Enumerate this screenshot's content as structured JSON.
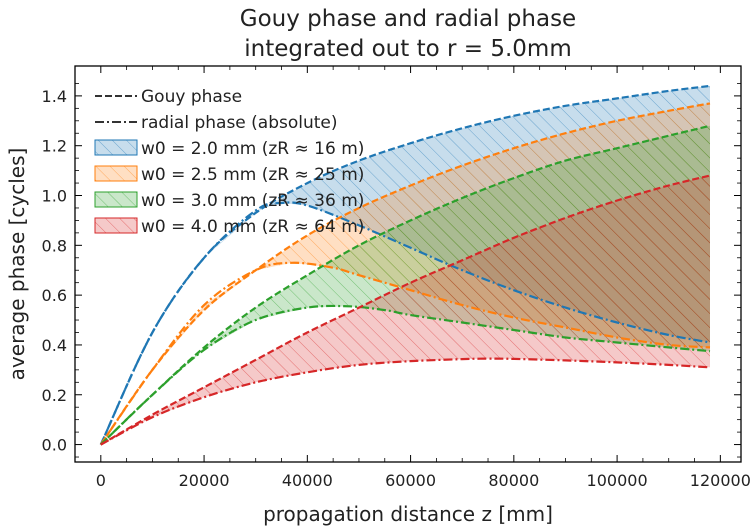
{
  "chart_data": {
    "type": "line",
    "title_lines": [
      "Gouy phase and radial phase",
      "integrated out to r = 5.0mm"
    ],
    "xlabel": "propagation distance z [mm]",
    "ylabel": "average phase [cycles]",
    "xlim": [
      -5000,
      124000
    ],
    "ylim": [
      -0.07,
      1.52
    ],
    "xticks": [
      0,
      20000,
      40000,
      60000,
      80000,
      100000,
      120000
    ],
    "yticks": [
      0.0,
      0.2,
      0.4,
      0.6,
      0.8,
      1.0,
      1.2,
      1.4
    ],
    "x_max": 118000,
    "legend_position": "upper-left",
    "style_legend": [
      {
        "label": "Gouy phase",
        "dash": "dashed"
      },
      {
        "label": "radial phase (absolute)",
        "dash": "dashdot"
      }
    ],
    "series": [
      {
        "name": "w0 = 2.0 mm (zR ≈ 16 m)",
        "color": "#1f77b4",
        "gouy": [
          [
            0,
            0
          ],
          [
            10000,
            0.45
          ],
          [
            20000,
            0.75
          ],
          [
            30000,
            0.93
          ],
          [
            40000,
            1.05
          ],
          [
            50000,
            1.14
          ],
          [
            60000,
            1.21
          ],
          [
            70000,
            1.27
          ],
          [
            80000,
            1.32
          ],
          [
            90000,
            1.36
          ],
          [
            100000,
            1.39
          ],
          [
            110000,
            1.42
          ],
          [
            118000,
            1.44
          ]
        ],
        "radial": [
          [
            0,
            0
          ],
          [
            10000,
            0.45
          ],
          [
            20000,
            0.75
          ],
          [
            30000,
            0.94
          ],
          [
            35000,
            0.97
          ],
          [
            40000,
            0.96
          ],
          [
            50000,
            0.88
          ],
          [
            60000,
            0.79
          ],
          [
            70000,
            0.7
          ],
          [
            80000,
            0.62
          ],
          [
            90000,
            0.55
          ],
          [
            100000,
            0.49
          ],
          [
            110000,
            0.44
          ],
          [
            118000,
            0.41
          ]
        ]
      },
      {
        "name": "w0 = 2.5 mm (zR ≈ 25 m)",
        "color": "#ff7f0e",
        "gouy": [
          [
            0,
            0
          ],
          [
            10000,
            0.3
          ],
          [
            20000,
            0.54
          ],
          [
            30000,
            0.7
          ],
          [
            40000,
            0.84
          ],
          [
            50000,
            0.95
          ],
          [
            60000,
            1.04
          ],
          [
            70000,
            1.12
          ],
          [
            80000,
            1.19
          ],
          [
            90000,
            1.25
          ],
          [
            100000,
            1.3
          ],
          [
            110000,
            1.34
          ],
          [
            118000,
            1.37
          ]
        ],
        "radial": [
          [
            0,
            0
          ],
          [
            10000,
            0.3
          ],
          [
            20000,
            0.56
          ],
          [
            30000,
            0.7
          ],
          [
            37000,
            0.73
          ],
          [
            45000,
            0.71
          ],
          [
            50000,
            0.68
          ],
          [
            60000,
            0.62
          ],
          [
            70000,
            0.56
          ],
          [
            80000,
            0.51
          ],
          [
            90000,
            0.47
          ],
          [
            100000,
            0.43
          ],
          [
            110000,
            0.4
          ],
          [
            118000,
            0.39
          ]
        ]
      },
      {
        "name": "w0 = 3.0 mm (zR ≈ 36 m)",
        "color": "#2ca02c",
        "gouy": [
          [
            0,
            0
          ],
          [
            10000,
            0.2
          ],
          [
            20000,
            0.39
          ],
          [
            30000,
            0.55
          ],
          [
            40000,
            0.68
          ],
          [
            50000,
            0.8
          ],
          [
            60000,
            0.9
          ],
          [
            70000,
            0.99
          ],
          [
            80000,
            1.07
          ],
          [
            90000,
            1.14
          ],
          [
            100000,
            1.19
          ],
          [
            110000,
            1.24
          ],
          [
            118000,
            1.28
          ]
        ],
        "radial": [
          [
            0,
            0
          ],
          [
            10000,
            0.2
          ],
          [
            20000,
            0.38
          ],
          [
            30000,
            0.5
          ],
          [
            40000,
            0.55
          ],
          [
            48000,
            0.555
          ],
          [
            55000,
            0.54
          ],
          [
            60000,
            0.52
          ],
          [
            70000,
            0.49
          ],
          [
            80000,
            0.46
          ],
          [
            90000,
            0.43
          ],
          [
            100000,
            0.41
          ],
          [
            110000,
            0.39
          ],
          [
            118000,
            0.375
          ]
        ]
      },
      {
        "name": "w0 = 4.0 mm (zR ≈ 64 m)",
        "color": "#d62728",
        "gouy": [
          [
            0,
            0
          ],
          [
            10000,
            0.12
          ],
          [
            20000,
            0.23
          ],
          [
            30000,
            0.34
          ],
          [
            40000,
            0.45
          ],
          [
            50000,
            0.55
          ],
          [
            60000,
            0.65
          ],
          [
            70000,
            0.74
          ],
          [
            80000,
            0.83
          ],
          [
            90000,
            0.91
          ],
          [
            100000,
            0.98
          ],
          [
            110000,
            1.04
          ],
          [
            118000,
            1.08
          ]
        ],
        "radial": [
          [
            0,
            0
          ],
          [
            10000,
            0.11
          ],
          [
            20000,
            0.19
          ],
          [
            30000,
            0.25
          ],
          [
            40000,
            0.29
          ],
          [
            50000,
            0.32
          ],
          [
            60000,
            0.335
          ],
          [
            70000,
            0.343
          ],
          [
            75000,
            0.345
          ],
          [
            80000,
            0.344
          ],
          [
            90000,
            0.338
          ],
          [
            100000,
            0.33
          ],
          [
            110000,
            0.32
          ],
          [
            118000,
            0.31
          ]
        ]
      }
    ]
  }
}
